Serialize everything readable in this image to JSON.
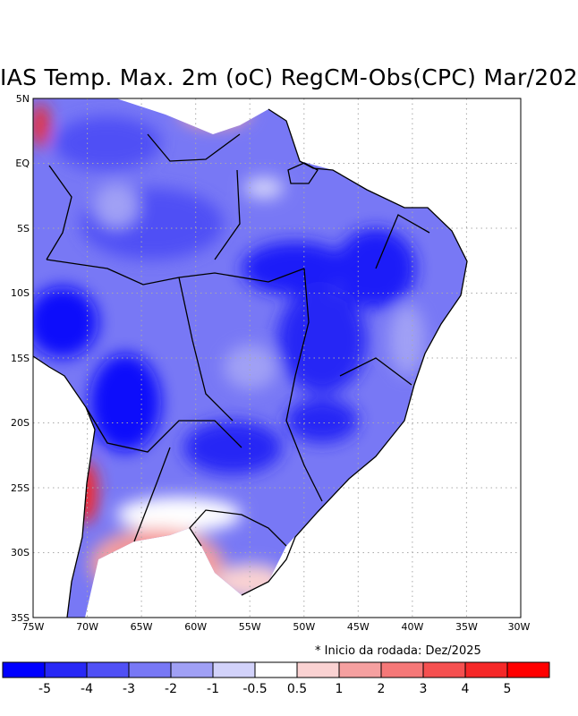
{
  "title": "IAS Temp. Max. 2m (oC) RegCM-Obs(CPC) Mar/202",
  "note": "* Inicio da rodada: Dez/2025",
  "axes": {
    "lat_labels": [
      "5N",
      "EQ",
      "5S",
      "10S",
      "15S",
      "20S",
      "25S",
      "30S",
      "35S"
    ],
    "lon_labels": [
      "75W",
      "70W",
      "65W",
      "60W",
      "55W",
      "50W",
      "45W",
      "40W",
      "35W",
      "30W"
    ]
  },
  "colorbar": {
    "labels": [
      "-5",
      "-4",
      "-3",
      "-2",
      "-1",
      "-0.5",
      "0.5",
      "1",
      "2",
      "3",
      "4",
      "5"
    ],
    "colors": [
      "#0000ff",
      "#2828f5",
      "#5050f5",
      "#7878f5",
      "#a0a0f5",
      "#d2d2fa",
      "#ffffff",
      "#fad2d2",
      "#f5a0a0",
      "#f57878",
      "#f55050",
      "#f52828",
      "#ff0000"
    ]
  }
}
